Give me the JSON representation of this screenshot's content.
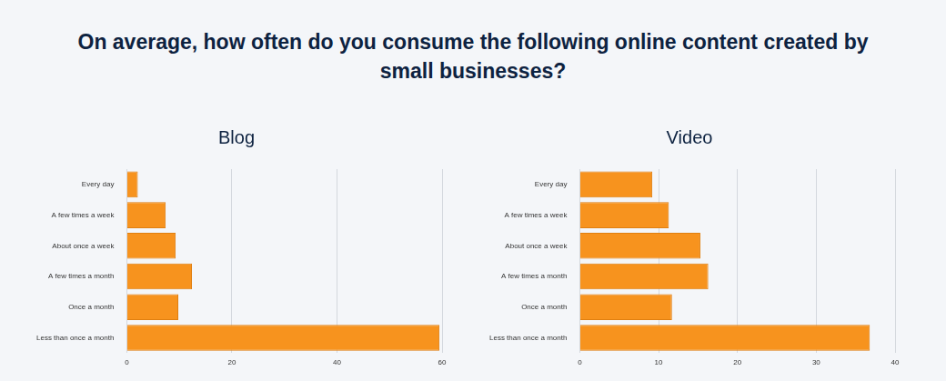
{
  "title": "On average, how often do you consume the following online content created by small businesses?",
  "chart_data": [
    {
      "type": "bar",
      "title": "Blog",
      "orientation": "horizontal",
      "categories": [
        "Every day",
        "A few times a week",
        "About once a week",
        "A few times a month",
        "Once a month",
        "Less than once a month"
      ],
      "values": [
        2.1,
        7.4,
        9.3,
        12.4,
        9.8,
        59.5
      ],
      "color": "#f7931e",
      "xlim": [
        0,
        60
      ],
      "xticks": [
        0,
        20,
        40,
        60
      ],
      "grid": true
    },
    {
      "type": "bar",
      "title": "Video",
      "orientation": "horizontal",
      "categories": [
        "Every day",
        "A few times a week",
        "About once a week",
        "A few times a month",
        "Once a month",
        "Less than once a month"
      ],
      "values": [
        9.2,
        11.3,
        15.3,
        16.3,
        11.7,
        36.8
      ],
      "color": "#f7931e",
      "xlim": [
        0,
        40
      ],
      "xticks": [
        0,
        10,
        20,
        30,
        40
      ],
      "grid": true
    }
  ]
}
